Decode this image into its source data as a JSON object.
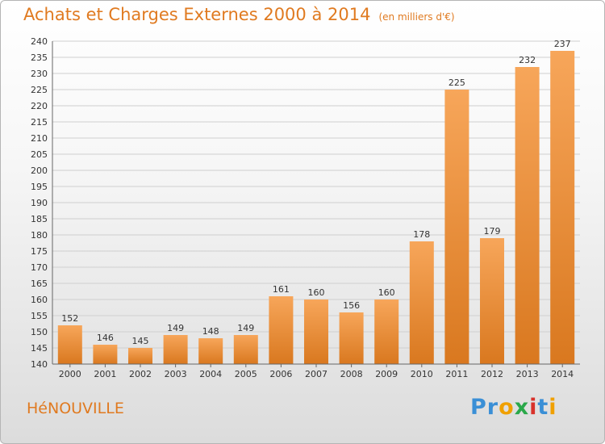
{
  "title": "Achats et Charges Externes 2000 à 2014",
  "subtitle": "(en milliers d'€)",
  "commune": "HéNOUVILLE",
  "logo": {
    "letters": [
      "P",
      "r",
      "o",
      "x",
      "i",
      "t",
      "i"
    ],
    "colors": [
      "#3a8fd6",
      "#3a8fd6",
      "#f0a000",
      "#2aa84a",
      "#d8322b",
      "#3a8fd6",
      "#f0a000"
    ]
  },
  "chart_data": {
    "type": "bar",
    "categories": [
      "2000",
      "2001",
      "2002",
      "2003",
      "2004",
      "2005",
      "2006",
      "2007",
      "2008",
      "2009",
      "2010",
      "2011",
      "2012",
      "2013",
      "2014"
    ],
    "values": [
      152,
      146,
      145,
      149,
      148,
      149,
      161,
      160,
      156,
      160,
      178,
      225,
      179,
      232,
      237
    ],
    "ylim": [
      140,
      240
    ],
    "yticks": [
      140,
      145,
      150,
      155,
      160,
      165,
      170,
      175,
      180,
      185,
      190,
      195,
      200,
      205,
      210,
      215,
      220,
      225,
      230,
      235,
      240
    ],
    "grid": true,
    "bar_color": "#f0963a"
  }
}
